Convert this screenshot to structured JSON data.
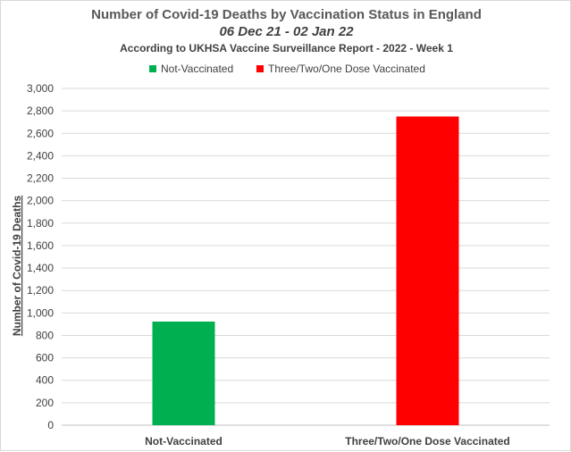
{
  "chart_data": {
    "type": "bar",
    "title": "Number of Covid-19 Deaths by Vaccination Status in England",
    "subtitle": "06 Dec 21 - 02 Jan 22",
    "source_note": "According to UKHSA Vaccine Surveillance Report - 2022 - Week 1",
    "categories": [
      "Not-Vaccinated",
      "Three/Two/One Dose Vaccinated"
    ],
    "series": [
      {
        "name": "Not-Vaccinated",
        "color": "#00b050",
        "values": [
          923,
          null
        ]
      },
      {
        "name": "Three/Two/One Dose Vaccinated",
        "color": "#ff0000",
        "values": [
          null,
          2750
        ]
      }
    ],
    "xlabel": "",
    "ylabel": "Number of Covid-19 Deaths",
    "ylim": [
      0,
      3000
    ],
    "yticks": [
      "0",
      "200",
      "400",
      "600",
      "800",
      "1,000",
      "1,200",
      "1,400",
      "1,600",
      "1,800",
      "2,000",
      "2,200",
      "2,400",
      "2,600",
      "2,800",
      "3,000"
    ],
    "grid": true,
    "legend_position": "top"
  }
}
